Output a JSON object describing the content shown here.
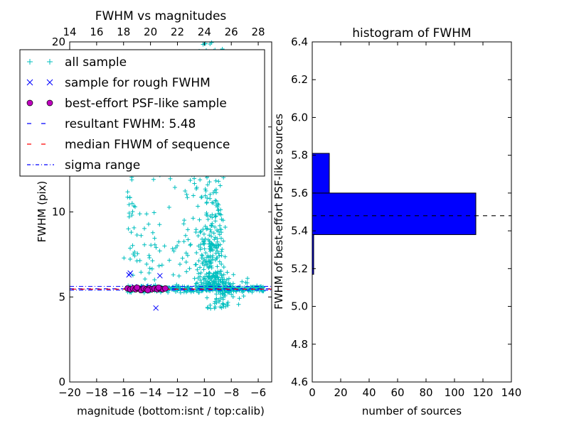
{
  "chart_data": [
    {
      "type": "scatter",
      "title": "FWHM vs magnitudes",
      "xlabel": "magnitude (bottom:isnt / top:calib)",
      "ylabel": "FWHM (pix)",
      "xlim": [
        -20,
        -5
      ],
      "ylim": [
        0,
        20
      ],
      "x_ticks": [
        -20,
        -18,
        -16,
        -14,
        -12,
        -10,
        -8,
        -6
      ],
      "x_tick_labels": [
        "−20",
        "−18",
        "−16",
        "−14",
        "−12",
        "−10",
        "−8",
        "−6"
      ],
      "y_ticks": [
        0,
        5,
        10,
        15,
        20
      ],
      "y_tick_labels": [
        "0",
        "5",
        "10",
        "15",
        "20"
      ],
      "top_axis": {
        "ticks": [
          14,
          16,
          18,
          20,
          22,
          24,
          26,
          28
        ],
        "labels": [
          "14",
          "16",
          "18",
          "20",
          "22",
          "24",
          "26",
          "28"
        ],
        "offset": 34
      },
      "legend_position": "top-left",
      "legend": [
        {
          "label": "all sample",
          "marker": "plus",
          "color": "#00bfbf"
        },
        {
          "label": "sample for rough FWHM",
          "marker": "x",
          "color": "#0000ff"
        },
        {
          "label": "best-effort PSF-like sample",
          "marker": "circle",
          "color": "#bf00bf"
        },
        {
          "label": "resultant FWHM: 5.48",
          "marker": "dashed",
          "color": "#0000ff"
        },
        {
          "label": "median FHWM of sequence",
          "marker": "dashed",
          "color": "#ff0000"
        },
        {
          "label": "sigma range",
          "marker": "dashdot",
          "color": "#0000ff"
        }
      ],
      "series": [
        {
          "name": "sample for rough FWHM",
          "points": [
            [
              -15.6,
              6.3
            ],
            [
              -15.5,
              6.4
            ],
            [
              -13.3,
              6.25
            ],
            [
              -13.6,
              4.35
            ],
            [
              -15.2,
              5.6
            ],
            [
              -14.8,
              5.55
            ],
            [
              -14.5,
              5.45
            ],
            [
              -14.1,
              5.6
            ],
            [
              -13.9,
              5.5
            ],
            [
              -13.6,
              5.55
            ],
            [
              -13.2,
              5.45
            ]
          ]
        },
        {
          "name": "best-effort PSF-like sample",
          "points": [
            [
              -15.7,
              5.5
            ],
            [
              -15.5,
              5.45
            ],
            [
              -15.3,
              5.5
            ],
            [
              -15.1,
              5.45
            ],
            [
              -14.9,
              5.5
            ],
            [
              -14.7,
              5.4
            ],
            [
              -14.5,
              5.5
            ],
            [
              -14.3,
              5.45
            ],
            [
              -14.1,
              5.5
            ],
            [
              -13.9,
              5.45
            ],
            [
              -13.7,
              5.5
            ],
            [
              -13.5,
              5.45
            ],
            [
              -13.3,
              5.5
            ],
            [
              -13.1,
              5.45
            ],
            [
              -12.9,
              5.5
            ],
            [
              -15.0,
              5.55
            ],
            [
              -14.2,
              5.4
            ],
            [
              -13.4,
              5.55
            ]
          ]
        }
      ],
      "reference_lines": {
        "resultant": 5.48,
        "median": 5.46,
        "sigma_low": 5.4,
        "sigma_high": 5.62
      }
    },
    {
      "type": "bar",
      "orientation": "horizontal",
      "title": "histogram of FWHM",
      "xlabel": "number of sources",
      "ylabel": "FWHM of best-effort PSF-like sources",
      "xlim": [
        0,
        140
      ],
      "ylim": [
        4.6,
        6.4
      ],
      "x_ticks": [
        0,
        20,
        40,
        60,
        80,
        100,
        120,
        140
      ],
      "x_tick_labels": [
        "0",
        "20",
        "40",
        "60",
        "80",
        "100",
        "120",
        "140"
      ],
      "y_ticks": [
        4.6,
        4.8,
        5.0,
        5.2,
        5.4,
        5.6,
        5.8,
        6.0,
        6.2,
        6.4
      ],
      "y_tick_labels": [
        "4.6",
        "4.8",
        "5.0",
        "5.2",
        "5.4",
        "5.6",
        "5.8",
        "6.0",
        "6.2",
        "6.4"
      ],
      "bins": [
        {
          "low": 5.17,
          "high": 5.38,
          "count": 1
        },
        {
          "low": 5.38,
          "high": 5.6,
          "count": 115
        },
        {
          "low": 5.6,
          "high": 5.81,
          "count": 12
        }
      ],
      "bar_color": "#0000ff",
      "reference_line": 5.48
    }
  ]
}
